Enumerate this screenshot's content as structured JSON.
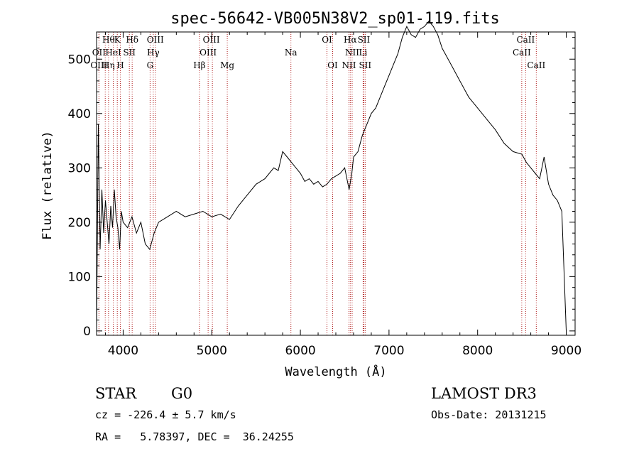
{
  "chart_data": {
    "type": "line",
    "title": "spec-56642-VB005N38V2_sp01-119.fits",
    "xlabel": "Wavelength (Å)",
    "ylabel": "Flux (relative)",
    "xlim": [
      3700,
      9100
    ],
    "ylim": [
      -8,
      550
    ],
    "xticks": [
      4000,
      5000,
      6000,
      7000,
      8000,
      9000
    ],
    "yticks": [
      0,
      100,
      200,
      300,
      400,
      500
    ],
    "series": [
      {
        "name": "flux",
        "x": [
          3700,
          3720,
          3740,
          3760,
          3780,
          3800,
          3820,
          3840,
          3860,
          3880,
          3900,
          3920,
          3940,
          3960,
          3980,
          4000,
          4050,
          4100,
          4150,
          4200,
          4250,
          4300,
          4350,
          4400,
          4500,
          4600,
          4700,
          4800,
          4900,
          5000,
          5100,
          5200,
          5300,
          5400,
          5500,
          5600,
          5700,
          5750,
          5800,
          5850,
          5900,
          5950,
          6000,
          6050,
          6100,
          6150,
          6200,
          6250,
          6300,
          6350,
          6400,
          6450,
          6500,
          6550,
          6580,
          6600,
          6650,
          6700,
          6750,
          6800,
          6850,
          6900,
          6950,
          7000,
          7050,
          7100,
          7150,
          7200,
          7250,
          7300,
          7350,
          7400,
          7450,
          7500,
          7550,
          7600,
          7700,
          7800,
          7900,
          8000,
          8100,
          8200,
          8300,
          8400,
          8500,
          8550,
          8600,
          8650,
          8700,
          8750,
          8800,
          8850,
          8900,
          8950,
          9000
        ],
        "y": [
          0,
          380,
          150,
          260,
          180,
          240,
          200,
          160,
          230,
          190,
          260,
          210,
          190,
          150,
          220,
          200,
          190,
          210,
          180,
          200,
          160,
          150,
          180,
          200,
          210,
          220,
          210,
          215,
          220,
          210,
          215,
          205,
          230,
          250,
          270,
          280,
          300,
          295,
          330,
          320,
          310,
          300,
          290,
          275,
          280,
          270,
          275,
          265,
          270,
          280,
          285,
          290,
          300,
          260,
          290,
          320,
          330,
          360,
          380,
          400,
          410,
          430,
          450,
          470,
          490,
          510,
          540,
          560,
          545,
          540,
          555,
          560,
          570,
          560,
          545,
          520,
          490,
          460,
          430,
          410,
          390,
          370,
          345,
          330,
          325,
          310,
          300,
          290,
          280,
          320,
          270,
          250,
          240,
          220,
          0
        ]
      }
    ],
    "line_markers": {
      "color": "#b22222",
      "rows": [
        {
          "row": 0,
          "labels": [
            {
              "x": 3835,
              "text": "Hθ"
            },
            {
              "x": 3934,
              "text": "K"
            },
            {
              "x": 4102,
              "text": "Hδ"
            },
            {
              "x": 4363,
              "text": "OIII"
            },
            {
              "x": 4995,
              "text": "OIII"
            },
            {
              "x": 6300,
              "text": "OI"
            },
            {
              "x": 6563,
              "text": "Hα"
            },
            {
              "x": 6716,
              "text": "SII"
            },
            {
              "x": 8542,
              "text": "CaII"
            }
          ]
        },
        {
          "row": 1,
          "labels": [
            {
              "x": 3727,
              "text": "OII"
            },
            {
              "x": 3889,
              "text": "HeI"
            },
            {
              "x": 4070,
              "text": "SII"
            },
            {
              "x": 4340,
              "text": "Hγ"
            },
            {
              "x": 4959,
              "text": "OIII"
            },
            {
              "x": 5893,
              "text": "Na"
            },
            {
              "x": 6584,
              "text": "NII"
            },
            {
              "x": 6708,
              "text": "Li"
            },
            {
              "x": 8498,
              "text": "CaII"
            }
          ]
        },
        {
          "row": 2,
          "labels": [
            {
              "x": 3727,
              "text": "OIII"
            },
            {
              "x": 3835,
              "text": "Hη"
            },
            {
              "x": 3968,
              "text": "H"
            },
            {
              "x": 4304,
              "text": "G"
            },
            {
              "x": 4861,
              "text": "Hβ"
            },
            {
              "x": 5175,
              "text": "Mg"
            },
            {
              "x": 6364,
              "text": "OI"
            },
            {
              "x": 6548,
              "text": "NII"
            },
            {
              "x": 6731,
              "text": "SII"
            },
            {
              "x": 8662,
              "text": "CaII"
            }
          ]
        }
      ],
      "lines": [
        3727,
        3798,
        3835,
        3889,
        3934,
        3968,
        4070,
        4102,
        4304,
        4340,
        4363,
        4861,
        4959,
        5007,
        5175,
        5893,
        6300,
        6364,
        6548,
        6563,
        6584,
        6708,
        6716,
        6731,
        8498,
        8542,
        8662
      ]
    }
  },
  "info": {
    "class": "STAR",
    "subclass": "G0",
    "survey": "LAMOST DR3",
    "cz": "cz = -226.4 ± 5.7 km/s",
    "obs_date": "Obs-Date: 20131215",
    "radec": "RA =   5.78397, DEC =  36.24255"
  }
}
